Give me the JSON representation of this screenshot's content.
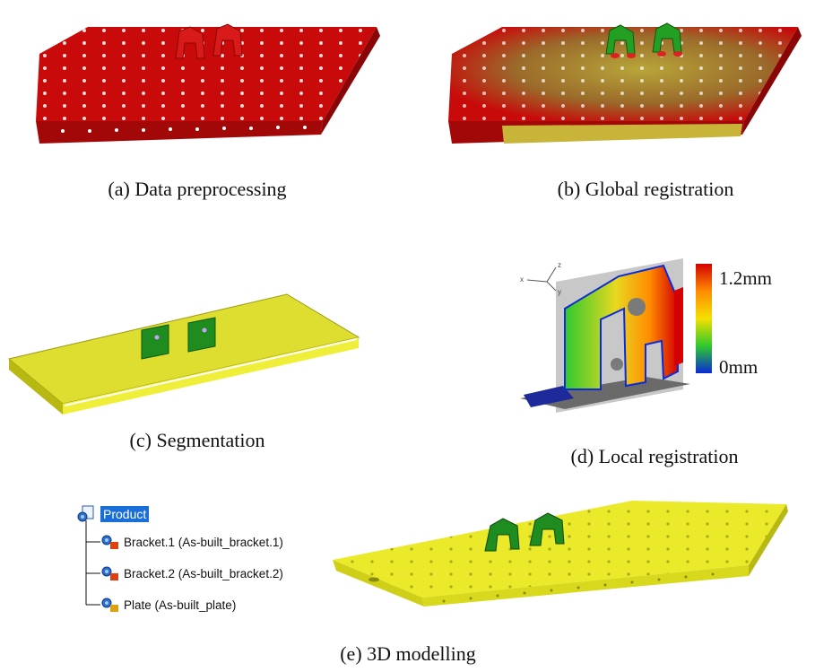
{
  "captions": {
    "a": "(a) Data preprocessing",
    "b": "(b) Global registration",
    "c": "(c) Segmentation",
    "d": "(d) Local registration",
    "e": "(e) 3D modelling"
  },
  "colorbar": {
    "max_label": "1.2mm",
    "min_label": "0mm",
    "colors": [
      "#d40000",
      "#ff8c00",
      "#f5e000",
      "#2ec92e",
      "#0a2bd6"
    ]
  },
  "axes_triad": {
    "labels": [
      "z",
      "x",
      "y"
    ]
  },
  "product_tree": {
    "root": "Product",
    "items": [
      "Bracket.1 (As-built_bracket.1)",
      "Bracket.2 (As-built_bracket.2)",
      "Plate (As-built_plate)"
    ]
  },
  "colors": {
    "red_cloud": "#c80a0a",
    "yellow_model": "#e8e81a",
    "green_bracket": "#1e8c1e"
  }
}
